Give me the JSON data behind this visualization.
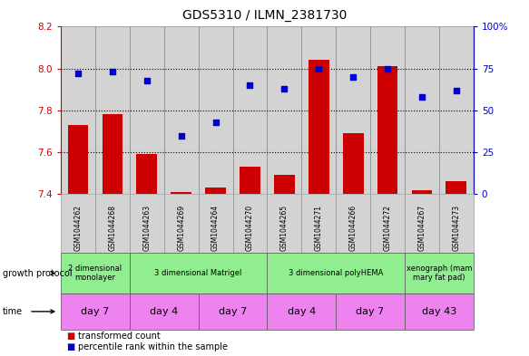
{
  "title": "GDS5310 / ILMN_2381730",
  "samples": [
    "GSM1044262",
    "GSM1044268",
    "GSM1044263",
    "GSM1044269",
    "GSM1044264",
    "GSM1044270",
    "GSM1044265",
    "GSM1044271",
    "GSM1044266",
    "GSM1044272",
    "GSM1044267",
    "GSM1044273"
  ],
  "bar_values": [
    7.73,
    7.78,
    7.59,
    7.41,
    7.43,
    7.53,
    7.49,
    8.04,
    7.69,
    8.01,
    7.42,
    7.46
  ],
  "scatter_values": [
    72,
    73,
    68,
    35,
    43,
    65,
    63,
    75,
    70,
    75,
    58,
    62
  ],
  "ylim_left": [
    7.4,
    8.2
  ],
  "ylim_right": [
    0,
    100
  ],
  "yticks_left": [
    7.4,
    7.6,
    7.8,
    8.0,
    8.2
  ],
  "yticks_right": [
    0,
    25,
    50,
    75,
    100
  ],
  "bar_color": "#CC0000",
  "scatter_color": "#0000CC",
  "bar_width": 0.6,
  "growth_protocol_groups": [
    {
      "label": "2 dimensional\nmonolayer",
      "start": 0,
      "end": 2,
      "color": "#90EE90"
    },
    {
      "label": "3 dimensional Matrigel",
      "start": 2,
      "end": 6,
      "color": "#90EE90"
    },
    {
      "label": "3 dimensional polyHEMA",
      "start": 6,
      "end": 10,
      "color": "#90EE90"
    },
    {
      "label": "xenograph (mam\nmary fat pad)",
      "start": 10,
      "end": 12,
      "color": "#90EE90"
    }
  ],
  "time_groups": [
    {
      "label": "day 7",
      "start": 0,
      "end": 2,
      "color": "#EE82EE"
    },
    {
      "label": "day 4",
      "start": 2,
      "end": 4,
      "color": "#EE82EE"
    },
    {
      "label": "day 7",
      "start": 4,
      "end": 6,
      "color": "#EE82EE"
    },
    {
      "label": "day 4",
      "start": 6,
      "end": 8,
      "color": "#EE82EE"
    },
    {
      "label": "day 7",
      "start": 8,
      "end": 10,
      "color": "#EE82EE"
    },
    {
      "label": "day 43",
      "start": 10,
      "end": 12,
      "color": "#EE82EE"
    }
  ],
  "legend_bar_label": "transformed count",
  "legend_scatter_label": "percentile rank within the sample",
  "growth_protocol_label": "growth protocol",
  "time_label": "time",
  "title_color": "#000000",
  "left_axis_color": "#CC0000",
  "right_axis_color": "#0000CC",
  "sample_bg_color": "#D3D3D3",
  "plot_bg_color": "#FFFFFF",
  "grid_color": "#000000"
}
